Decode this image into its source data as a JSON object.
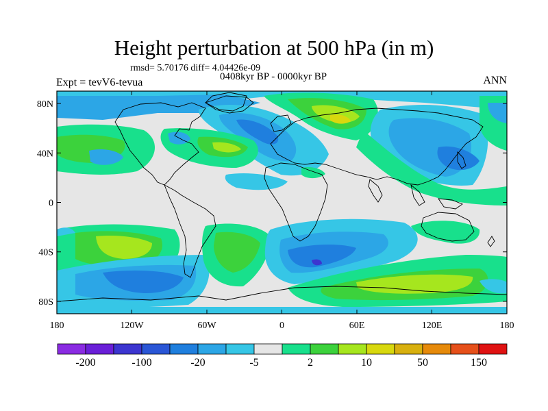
{
  "header": {
    "title": "Height perturbation at 500 hPa (in m)",
    "stats": "rmsd= 5.70176 diff= 4.04426e-09",
    "period": "0408kyr BP - 0000kyr BP",
    "experiment": "Expt = tevV6-tevua",
    "season": "ANN"
  },
  "map": {
    "projection": "cylindrical-equidistant",
    "lon_range": [
      -180,
      180
    ],
    "lat_range": [
      -90,
      90
    ],
    "lat_labels": [
      "80N",
      "40N",
      "0",
      "40S",
      "80S"
    ],
    "lon_labels": [
      "180",
      "120W",
      "60W",
      "0",
      "60E",
      "120E",
      "180"
    ],
    "background_color": "#e6e6e6",
    "coastline_color": "#000000"
  },
  "colorbar": {
    "colors": [
      "#8a2be2",
      "#6a1fd8",
      "#3c35d0",
      "#2a56d6",
      "#1f7fde",
      "#2ca6e6",
      "#36c6e6",
      "#e6e6e6",
      "#18e08c",
      "#3cd23c",
      "#a6e61e",
      "#d8d80e",
      "#d8b00e",
      "#e68a0a",
      "#e6501a",
      "#e01212"
    ],
    "labels": [
      "-200",
      "-100",
      "-20",
      "-5",
      "2",
      "10",
      "50",
      "150"
    ]
  }
}
